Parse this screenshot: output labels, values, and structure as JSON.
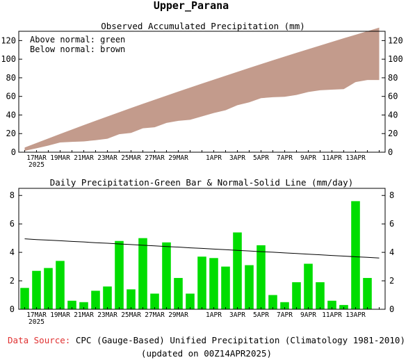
{
  "page": {
    "title": "Upper_Parana",
    "source_label": "Data Source:",
    "source_text": "CPC (Gauge-Based) Unified Precipitation (Climatology 1981-2010)",
    "updated": "(updated on 00Z14APR2025)"
  },
  "colors": {
    "below_normal": "#c39b8c",
    "bar": "#00dd00",
    "source_label": "#e03030"
  },
  "x_labels": [
    "17MAR",
    "19MAR",
    "21MAR",
    "23MAR",
    "25MAR",
    "27MAR",
    "29MAR",
    "1APR",
    "3APR",
    "5APR",
    "7APR",
    "9APR",
    "11APR",
    "13APR"
  ],
  "x_label_days": [
    2,
    4,
    6,
    8,
    10,
    12,
    14,
    17,
    19,
    21,
    23,
    25,
    27,
    29
  ],
  "year_label": "2025",
  "chart_data": [
    {
      "type": "area",
      "title": "Observed Accumulated Precipitation (mm)",
      "annotations": [
        "Above normal: green",
        "Below normal: brown"
      ],
      "x_start": "15MAR2025",
      "x": [
        1,
        2,
        3,
        4,
        5,
        6,
        7,
        8,
        9,
        10,
        11,
        12,
        13,
        14,
        15,
        16,
        17,
        18,
        19,
        20,
        21,
        22,
        23,
        24,
        25,
        26,
        27,
        28,
        29,
        30,
        31
      ],
      "series": [
        {
          "name": "Observed",
          "values": [
            1.5,
            4.2,
            7.1,
            10.5,
            11.1,
            11.6,
            12.9,
            14.5,
            19.3,
            20.7,
            25.7,
            26.8,
            31.5,
            33.7,
            34.8,
            38.5,
            42.1,
            45.1,
            50.5,
            53.6,
            58.1,
            59.1,
            59.6,
            61.5,
            64.7,
            66.6,
            67.2,
            67.8,
            75.4,
            77.6,
            77.6
          ]
        },
        {
          "name": "Normal",
          "values": [
            5.0,
            9.9,
            14.8,
            19.6,
            24.4,
            29.1,
            33.8,
            38.4,
            43.0,
            47.5,
            52.0,
            56.4,
            60.8,
            65.2,
            69.5,
            73.8,
            78.0,
            82.2,
            86.4,
            90.6,
            94.7,
            98.8,
            102.8,
            106.8,
            110.8,
            114.7,
            118.6,
            122.5,
            126.3,
            130.1,
            133.9
          ]
        }
      ],
      "xlim": [
        0.5,
        31.5
      ],
      "ylim": [
        0,
        130
      ],
      "yticks": [
        0,
        20,
        40,
        60,
        80,
        100,
        120
      ]
    },
    {
      "type": "bar",
      "title": "Daily Precipitation-Green Bar & Normal-Solid Line (mm/day)",
      "x_start": "15MAR2025",
      "x": [
        1,
        2,
        3,
        4,
        5,
        6,
        7,
        8,
        9,
        10,
        11,
        12,
        13,
        14,
        15,
        16,
        17,
        18,
        19,
        20,
        21,
        22,
        23,
        24,
        25,
        26,
        27,
        28,
        29,
        30,
        31
      ],
      "series": [
        {
          "name": "Daily Precipitation",
          "values": [
            1.5,
            2.7,
            2.9,
            3.4,
            0.6,
            0.5,
            1.3,
            1.6,
            4.8,
            1.4,
            5.0,
            1.1,
            4.7,
            2.2,
            1.1,
            3.7,
            3.6,
            3.0,
            5.4,
            3.1,
            4.5,
            1.0,
            0.5,
            1.9,
            3.2,
            1.9,
            0.6,
            0.3,
            7.6,
            2.2,
            0.0
          ]
        },
        {
          "name": "Normal",
          "values": [
            4.95,
            4.9,
            4.86,
            4.82,
            4.77,
            4.73,
            4.68,
            4.64,
            4.59,
            4.55,
            4.5,
            4.46,
            4.41,
            4.37,
            4.32,
            4.28,
            4.23,
            4.19,
            4.14,
            4.1,
            4.05,
            4.01,
            3.96,
            3.92,
            3.87,
            3.83,
            3.78,
            3.74,
            3.69,
            3.65,
            3.6
          ]
        }
      ],
      "xlim": [
        0.5,
        31.5
      ],
      "ylim": [
        0,
        8.5
      ],
      "yticks": [
        0,
        2,
        4,
        6,
        8
      ]
    }
  ]
}
